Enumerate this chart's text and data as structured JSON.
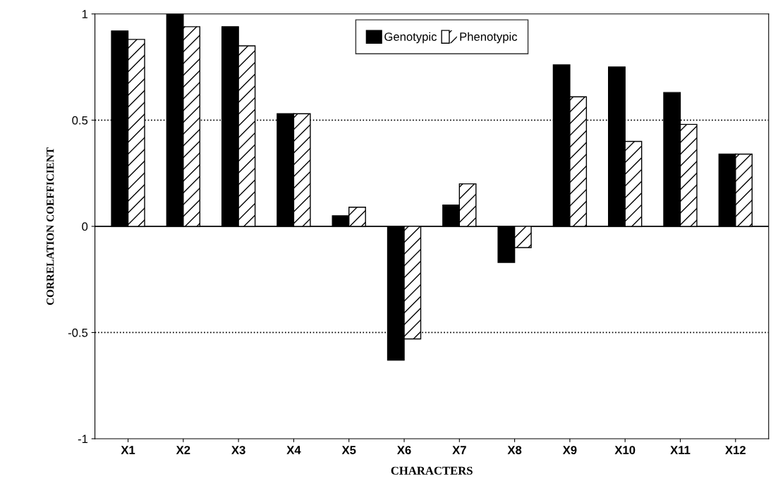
{
  "chart_data": {
    "type": "bar",
    "xlabel": "CHARACTERS",
    "ylabel": "CORRELATION COEFFICIENT",
    "categories": [
      "X1",
      "X2",
      "X3",
      "X4",
      "X5",
      "X6",
      "X7",
      "X8",
      "X9",
      "X10",
      "X11",
      "X12"
    ],
    "series": [
      {
        "name": "Genotypic",
        "color": "#000000",
        "values": [
          0.92,
          1.0,
          0.94,
          0.53,
          0.05,
          -0.63,
          0.1,
          -0.17,
          0.76,
          0.75,
          0.63,
          0.34
        ]
      },
      {
        "name": "Phenotypic",
        "color": "#ffffff",
        "values": [
          0.88,
          0.94,
          0.85,
          0.53,
          0.09,
          -0.53,
          0.2,
          -0.1,
          0.61,
          0.4,
          0.48,
          0.34
        ]
      }
    ],
    "ylim": [
      -1,
      1
    ],
    "yticks": [
      -1,
      -0.5,
      0,
      0.5,
      1
    ],
    "ref_lines": [
      {
        "axis": "y",
        "value": 0.5,
        "line_style": "dotted",
        "color": "#000000"
      },
      {
        "axis": "y",
        "value": -0.5,
        "line_style": "dotted",
        "color": "#000000"
      },
      {
        "axis": "y",
        "value": 0,
        "line_style": "solid",
        "color": "#000000"
      }
    ],
    "grid": false,
    "legend": "top"
  }
}
